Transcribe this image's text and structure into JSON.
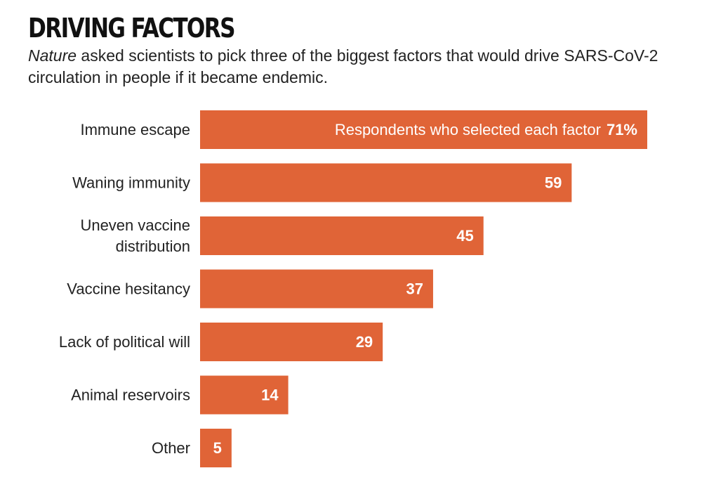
{
  "chart_data": {
    "type": "bar",
    "orientation": "horizontal",
    "title": "DRIVING FACTORS",
    "subtitle_italic": "Nature",
    "subtitle_rest": " asked scientists to pick three of the biggest factors that would drive SARS-CoV-2 circulation in people if it became endemic.",
    "caption": "Respondents who selected each factor",
    "categories": [
      [
        "Immune escape"
      ],
      [
        "Waning immunity"
      ],
      [
        "Uneven vaccine",
        "distribution"
      ],
      [
        "Vaccine hesitancy"
      ],
      [
        "Lack of political will"
      ],
      [
        "Animal reservoirs"
      ],
      [
        "Other"
      ]
    ],
    "values": [
      71,
      59,
      45,
      37,
      29,
      14,
      5
    ],
    "value_labels": [
      "71%",
      "59",
      "45",
      "37",
      "29",
      "14",
      "5"
    ],
    "xlim": [
      0,
      71
    ],
    "grid": false,
    "legend": "none",
    "bar_color": "#e06437"
  }
}
